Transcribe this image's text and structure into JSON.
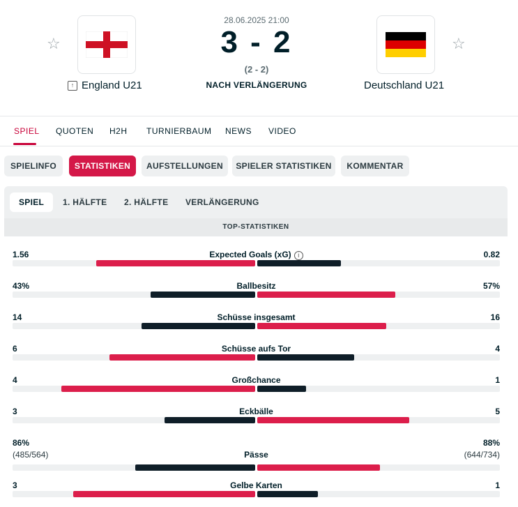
{
  "match": {
    "datetime": "28.06.2025 21:00",
    "score": "3 - 2",
    "halftime": "(2 - 2)",
    "status": "NACH VERLÄNGERUNG",
    "home": {
      "name": "England U21",
      "flag": "england-flag"
    },
    "away": {
      "name": "Deutschland U21",
      "flag": "germany-flag"
    }
  },
  "colors": {
    "accent": "#c80037",
    "winning": "#dc1e4b",
    "losing": "#0f1e28",
    "track": "#eef0f1"
  },
  "main_tabs": [
    "SPIEL",
    "QUOTEN",
    "H2H",
    "TURNIERBAUM",
    "NEWS",
    "VIDEO"
  ],
  "sub_tabs": [
    "SPIELINFO",
    "STATISTIKEN",
    "AUFSTELLUNGEN",
    "SPIELER STATISTIKEN",
    "KOMMENTAR"
  ],
  "periods": [
    "SPIEL",
    "1. HÄLFTE",
    "2. HÄLFTE",
    "VERLÄNGERUNG"
  ],
  "section_title": "TOP-STATISTIKEN",
  "stats": [
    {
      "label": "Expected Goals (xG)",
      "home": "1.56",
      "away": "0.82",
      "home_val": 1.56,
      "away_val": 0.82,
      "info": true
    },
    {
      "label": "Ballbesitz",
      "home": "43%",
      "away": "57%",
      "home_val": 43,
      "away_val": 57
    },
    {
      "label": "Schüsse insgesamt",
      "home": "14",
      "away": "16",
      "home_val": 14,
      "away_val": 16
    },
    {
      "label": "Schüsse aufs Tor",
      "home": "6",
      "away": "4",
      "home_val": 6,
      "away_val": 4
    },
    {
      "label": "Großchance",
      "home": "4",
      "away": "1",
      "home_val": 4,
      "away_val": 1
    },
    {
      "label": "Eckbälle",
      "home": "3",
      "away": "5",
      "home_val": 3,
      "away_val": 5
    },
    {
      "label": "Pässe",
      "home": "86%",
      "away": "88%",
      "home_sub": "(485/564)",
      "away_sub": "(644/734)",
      "home_val": 86,
      "away_val": 88
    },
    {
      "label": "Gelbe Karten",
      "home": "3",
      "away": "1",
      "home_val": 3,
      "away_val": 1
    }
  ]
}
